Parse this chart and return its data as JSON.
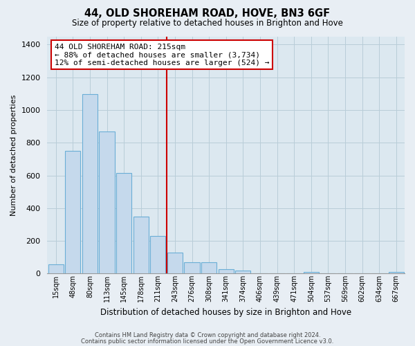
{
  "title": "44, OLD SHOREHAM ROAD, HOVE, BN3 6GF",
  "subtitle": "Size of property relative to detached houses in Brighton and Hove",
  "xlabel": "Distribution of detached houses by size in Brighton and Hove",
  "ylabel": "Number of detached properties",
  "bin_labels": [
    "15sqm",
    "48sqm",
    "80sqm",
    "113sqm",
    "145sqm",
    "178sqm",
    "211sqm",
    "243sqm",
    "276sqm",
    "308sqm",
    "341sqm",
    "374sqm",
    "406sqm",
    "439sqm",
    "471sqm",
    "504sqm",
    "537sqm",
    "569sqm",
    "602sqm",
    "634sqm",
    "667sqm"
  ],
  "bar_heights": [
    55,
    750,
    1095,
    870,
    615,
    350,
    230,
    130,
    70,
    70,
    25,
    20,
    0,
    0,
    0,
    10,
    0,
    0,
    0,
    0,
    10
  ],
  "bar_fill_color": "#c5d9ec",
  "bar_edge_color": "#6aaed6",
  "vline_index": 6,
  "vline_color": "#cc0000",
  "annotation_title": "44 OLD SHOREHAM ROAD: 215sqm",
  "annotation_line1": "← 88% of detached houses are smaller (3,734)",
  "annotation_line2": "12% of semi-detached houses are larger (524) →",
  "annotation_box_edge": "#cc0000",
  "ylim": [
    0,
    1450
  ],
  "yticks": [
    0,
    200,
    400,
    600,
    800,
    1000,
    1200,
    1400
  ],
  "footer1": "Contains HM Land Registry data © Crown copyright and database right 2024.",
  "footer2": "Contains public sector information licensed under the Open Government Licence v3.0.",
  "background_color": "#e8eef4",
  "plot_bg_color": "#dce8f0"
}
